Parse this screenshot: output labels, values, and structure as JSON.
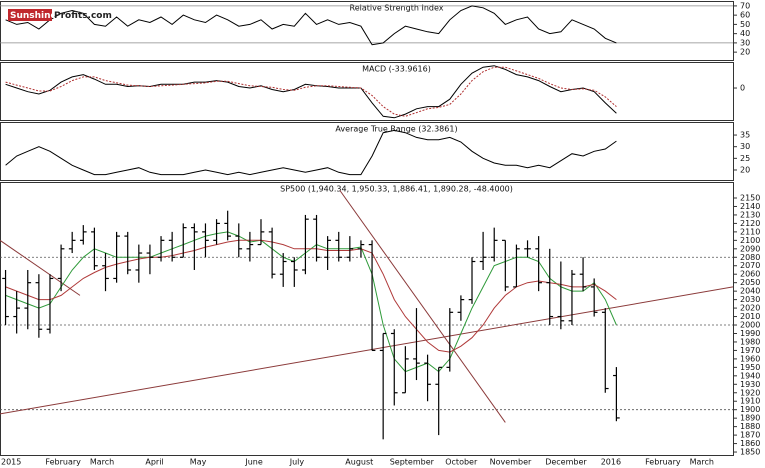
{
  "logo": {
    "part1": "Sunshine",
    "part2": "Profits.com"
  },
  "chart_data": [
    {
      "type": "line",
      "title": "Relative Strength Index",
      "ylim": [
        11.5,
        75.3
      ],
      "yticks": [
        20,
        30,
        40,
        50,
        60,
        70
      ],
      "levels": [
        30,
        70
      ],
      "series": [
        {
          "color": "#000000",
          "values": [
            55,
            50,
            52,
            45,
            55,
            62,
            65,
            62,
            50,
            48,
            58,
            48,
            55,
            52,
            58,
            50,
            60,
            55,
            52,
            60,
            55,
            48,
            50,
            55,
            45,
            50,
            48,
            62,
            50,
            55,
            50,
            52,
            48,
            28,
            30,
            40,
            48,
            45,
            42,
            40,
            55,
            65,
            70,
            68,
            62,
            50,
            55,
            58,
            45,
            40,
            42,
            55,
            50,
            45,
            35,
            30
          ]
        }
      ]
    },
    {
      "type": "line",
      "title": "MACD (-33.9616)",
      "ylim": [
        -43,
        35
      ],
      "yticks": [
        0
      ],
      "series": [
        {
          "color": "#000000",
          "values": [
            5,
            0,
            -5,
            -8,
            -3,
            8,
            15,
            18,
            12,
            5,
            5,
            2,
            3,
            2,
            5,
            5,
            5,
            8,
            8,
            10,
            8,
            2,
            0,
            3,
            -2,
            -5,
            -2,
            5,
            3,
            2,
            0,
            0,
            0,
            -20,
            -38,
            -40,
            -35,
            -28,
            -25,
            -25,
            -15,
            5,
            20,
            28,
            30,
            25,
            18,
            15,
            10,
            2,
            -5,
            -2,
            0,
            -5,
            -20,
            -33.9616
          ]
        },
        {
          "color": "#b03030",
          "dashed": true,
          "values": [
            8,
            4,
            0,
            -4,
            -4,
            2,
            10,
            15,
            15,
            10,
            7,
            4,
            3,
            2,
            3,
            4,
            5,
            6,
            7,
            9,
            9,
            6,
            3,
            2,
            1,
            -2,
            -3,
            1,
            3,
            3,
            2,
            1,
            0,
            -10,
            -25,
            -35,
            -38,
            -33,
            -28,
            -26,
            -22,
            -8,
            10,
            22,
            28,
            28,
            23,
            18,
            13,
            6,
            0,
            -2,
            -1,
            -3,
            -12,
            -25
          ]
        }
      ]
    },
    {
      "type": "line",
      "title": "Average True Range (32.3861)",
      "ylim": [
        15.7,
        40.6
      ],
      "yticks": [
        20,
        25,
        30,
        35
      ],
      "series": [
        {
          "color": "#000000",
          "values": [
            22,
            26,
            28,
            30,
            28,
            25,
            22,
            20,
            18,
            18,
            19,
            20,
            21,
            19,
            18,
            18,
            18,
            19,
            20,
            19,
            18,
            19,
            18,
            19,
            20,
            21,
            20,
            19,
            20,
            21,
            19,
            18,
            18,
            26,
            36,
            37,
            36,
            34,
            33,
            33,
            34,
            32,
            28,
            25,
            23,
            22,
            22,
            21,
            22,
            21,
            24,
            27,
            26,
            28,
            29,
            32.3861
          ]
        }
      ]
    },
    {
      "type": "ohlc",
      "title": "SP500 (1,940.34, 1,950.33, 1,886.41, 1,890.28, -48.4000)",
      "categories": [
        "2015",
        null,
        null,
        null,
        "February",
        null,
        null,
        null,
        "March",
        null,
        null,
        null,
        null,
        "April",
        null,
        null,
        null,
        "May",
        null,
        null,
        null,
        null,
        "June",
        null,
        null,
        null,
        "July",
        null,
        null,
        null,
        null,
        "August",
        null,
        null,
        null,
        "September",
        null,
        null,
        null,
        null,
        "October",
        null,
        null,
        null,
        "November",
        null,
        null,
        null,
        null,
        "December",
        null,
        null,
        null,
        null,
        "2016",
        null,
        null,
        null,
        "February",
        null,
        null,
        null,
        "March",
        null,
        null,
        null
      ],
      "open": [
        2055,
        2010,
        2020,
        2050,
        1995,
        2055,
        2090,
        2100,
        2110,
        2070,
        2055,
        2105,
        2065,
        2085,
        2080,
        2100,
        2080,
        2115,
        2110,
        2100,
        2120,
        2105,
        2090,
        2095,
        2110,
        2060,
        2075,
        2065,
        2125,
        2080,
        2100,
        2080,
        2090,
        2095,
        1970,
        1990,
        1920,
        1960,
        1955,
        1930,
        1950,
        2015,
        2030,
        2075,
        2080,
        2100,
        2045,
        2090,
        2090,
        2050,
        2010,
        2005,
        2060,
        2045,
        2015,
        1940.34,
        null,
        null,
        null,
        null,
        null,
        null,
        null,
        null,
        null,
        null
      ],
      "high": [
        2065,
        2040,
        2065,
        2060,
        2060,
        2095,
        2110,
        2118,
        2115,
        2085,
        2110,
        2110,
        2095,
        2095,
        2105,
        2110,
        2120,
        2120,
        2120,
        2125,
        2135,
        2120,
        2110,
        2125,
        2115,
        2085,
        2080,
        2130,
        2130,
        2105,
        2110,
        2105,
        2100,
        2100,
        1990,
        1995,
        1975,
        2020,
        1965,
        1950,
        2020,
        2035,
        2080,
        2110,
        2115,
        2100,
        2095,
        2100,
        2105,
        2090,
        2075,
        2065,
        2080,
        2055,
        2020,
        1950.33,
        null,
        null,
        null,
        null,
        null,
        null,
        null,
        null,
        null,
        null
      ],
      "low": [
        2000,
        1990,
        1995,
        1985,
        1990,
        2040,
        2085,
        2095,
        2065,
        2040,
        2050,
        2060,
        2050,
        2060,
        2075,
        2075,
        2080,
        2065,
        2080,
        2095,
        2100,
        2080,
        2075,
        2095,
        2055,
        2045,
        2045,
        2060,
        2075,
        2065,
        2075,
        2075,
        2080,
        1970,
        1865,
        1905,
        1920,
        1935,
        1910,
        1870,
        1945,
        2005,
        2025,
        2065,
        2075,
        2040,
        2045,
        2080,
        2040,
        2000,
        1995,
        2000,
        2040,
        2010,
        1920,
        1886.41,
        null,
        null,
        null,
        null,
        null,
        null,
        null,
        null,
        null,
        null
      ],
      "close": [
        2010,
        2020,
        2050,
        1995,
        2055,
        2090,
        2100,
        2110,
        2070,
        2055,
        2105,
        2065,
        2085,
        2080,
        2100,
        2080,
        2115,
        2110,
        2100,
        2120,
        2105,
        2090,
        2095,
        2110,
        2060,
        2075,
        2065,
        2125,
        2080,
        2100,
        2080,
        2090,
        2095,
        1970,
        1990,
        1920,
        1960,
        1955,
        1930,
        1950,
        2015,
        2030,
        2075,
        2080,
        2100,
        2045,
        2090,
        2090,
        2050,
        2010,
        2005,
        2060,
        2045,
        2015,
        1925,
        1890.28,
        null,
        null,
        null,
        null,
        null,
        null,
        null,
        null,
        null,
        null
      ],
      "bar_color": "#000000",
      "series": [
        {
          "color": "#2f9a3a",
          "values": [
            2035,
            2030,
            2025,
            2020,
            2025,
            2045,
            2065,
            2080,
            2090,
            2085,
            2080,
            2080,
            2080,
            2080,
            2085,
            2090,
            2095,
            2100,
            2105,
            2108,
            2110,
            2105,
            2098,
            2100,
            2090,
            2080,
            2075,
            2085,
            2095,
            2090,
            2090,
            2090,
            2092,
            2060,
            2000,
            1960,
            1945,
            1950,
            1955,
            1945,
            1960,
            1990,
            2020,
            2045,
            2070,
            2075,
            2080,
            2080,
            2075,
            2055,
            2045,
            2040,
            2040,
            2050,
            2030,
            2000,
            null,
            null,
            null,
            null,
            null,
            null,
            null,
            null,
            null,
            null
          ]
        },
        {
          "color": "#b03a3a",
          "values": [
            2045,
            2040,
            2035,
            2030,
            2030,
            2035,
            2045,
            2055,
            2062,
            2068,
            2072,
            2075,
            2078,
            2080,
            2080,
            2082,
            2085,
            2088,
            2092,
            2095,
            2098,
            2100,
            2100,
            2100,
            2098,
            2095,
            2090,
            2090,
            2090,
            2088,
            2088,
            2088,
            2090,
            2085,
            2060,
            2030,
            2010,
            1995,
            1980,
            1970,
            1968,
            1975,
            1985,
            2000,
            2020,
            2035,
            2045,
            2050,
            2052,
            2050,
            2048,
            2045,
            2045,
            2048,
            2040,
            2030,
            null,
            null,
            null,
            null,
            null,
            null,
            null,
            null,
            null,
            null
          ]
        }
      ],
      "levels": [
        2080,
        2000,
        1900
      ],
      "trend_lines": [
        {
          "color": "#8b3a3a",
          "start": [
            0,
            1895
          ],
          "end": [
            66,
            2045
          ]
        },
        {
          "color": "#8b3a3a",
          "start": [
            0,
            2100
          ],
          "end": [
            7.2,
            2035
          ]
        },
        {
          "color": "#8b3a3a",
          "start": [
            30.6,
            2159
          ],
          "end": [
            45.5,
            1885
          ]
        }
      ],
      "ylim": [
        1846.5,
        2168.9
      ],
      "yticks": [
        1850,
        1860,
        1870,
        1880,
        1890,
        1900,
        1910,
        1920,
        1930,
        1940,
        1950,
        1960,
        1970,
        1980,
        1990,
        2000,
        2010,
        2020,
        2030,
        2040,
        2050,
        2060,
        2070,
        2080,
        2090,
        2100,
        2110,
        2120,
        2130,
        2140,
        2150
      ]
    }
  ]
}
